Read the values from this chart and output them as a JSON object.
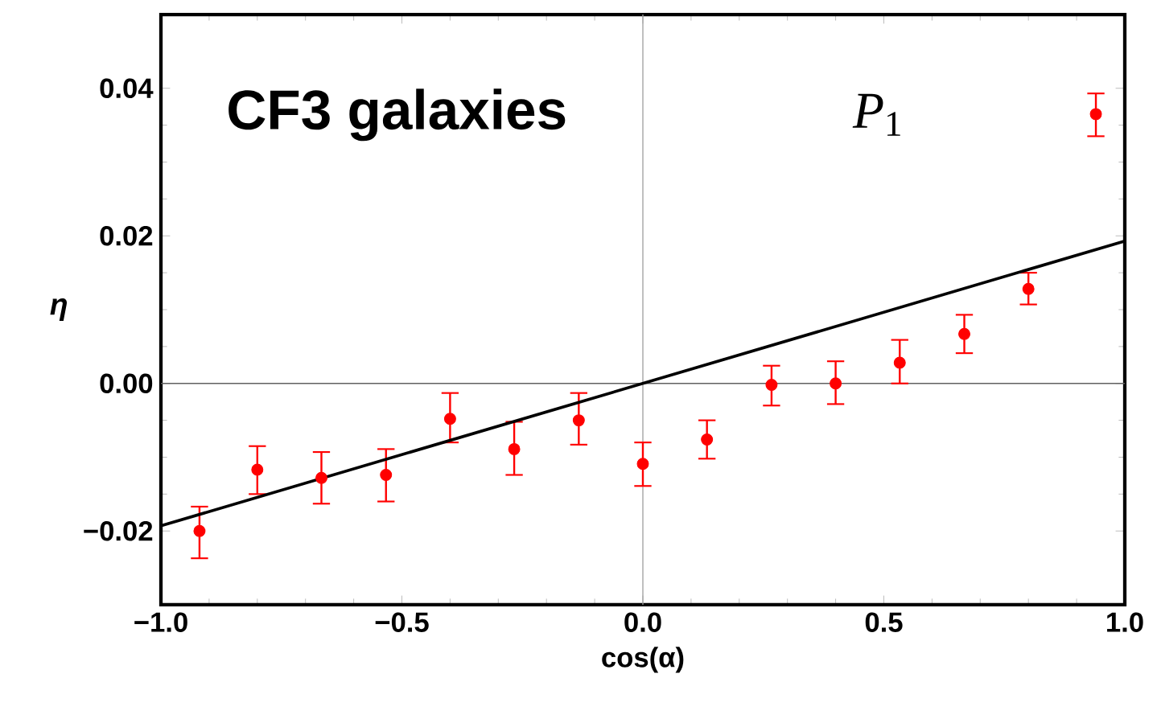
{
  "chart_data": {
    "type": "scatter",
    "xlabel": "cos(α)",
    "ylabel": "η",
    "annotations": [
      "CF3 galaxies",
      "*P*$_{1}$"
    ],
    "xlim": [
      -1,
      1
    ],
    "ylim": [
      -0.03,
      0.05
    ],
    "xticks": [
      {
        "value": -1,
        "label": "−1.0"
      },
      {
        "value": -0.5,
        "label": "−0.5"
      },
      {
        "value": 0,
        "label": "0.0"
      },
      {
        "value": 0.5,
        "label": "0.5"
      },
      {
        "value": 1,
        "label": "1.0"
      }
    ],
    "yticks": [
      {
        "value": -0.02,
        "label": "−0.02"
      },
      {
        "value": 0,
        "label": "0.00"
      },
      {
        "value": 0.02,
        "label": "0.02"
      },
      {
        "value": 0.04,
        "label": "0.04"
      }
    ],
    "marker": "circle",
    "grid": false,
    "ref_lines": [
      {
        "axis": "x",
        "value": 0,
        "color": "#a0a0a0"
      },
      {
        "axis": "y",
        "value": 0,
        "color": "#606060"
      }
    ],
    "series": [
      {
        "color": "#ff0000",
        "x": [
          -0.92,
          -0.8,
          -0.667,
          -0.533,
          -0.4,
          -0.267,
          -0.133,
          0,
          0.133,
          0.267,
          0.4,
          0.533,
          0.667,
          0.8,
          0.94
        ],
        "values": [
          -0.02,
          -0.0117,
          -0.0128,
          -0.0124,
          -0.0048,
          -0.0089,
          -0.005,
          -0.0109,
          -0.0076,
          -0.0002,
          0.0,
          0.0028,
          0.0067,
          0.0128,
          0.0365
        ],
        "errors": [
          [
            -0.0237,
            -0.0167
          ],
          [
            -0.015,
            -0.0085
          ],
          [
            -0.0163,
            -0.0093
          ],
          [
            -0.016,
            -0.0089
          ],
          [
            -0.008,
            -0.0013
          ],
          [
            -0.0124,
            -0.0052
          ],
          [
            -0.0083,
            -0.0013
          ],
          [
            -0.0139,
            -0.008
          ],
          [
            -0.0102,
            -0.005
          ],
          [
            -0.003,
            0.0024
          ],
          [
            -0.0028,
            0.003
          ],
          [
            0.0,
            0.0059
          ],
          [
            0.0041,
            0.0093
          ],
          [
            0.0107,
            0.015
          ],
          [
            0.0335,
            0.0393
          ]
        ]
      },
      {
        "type": "line",
        "color": "#000000",
        "marker": "none",
        "x": [
          -1,
          1
        ],
        "values": [
          -0.0193,
          0.0193
        ]
      }
    ]
  }
}
